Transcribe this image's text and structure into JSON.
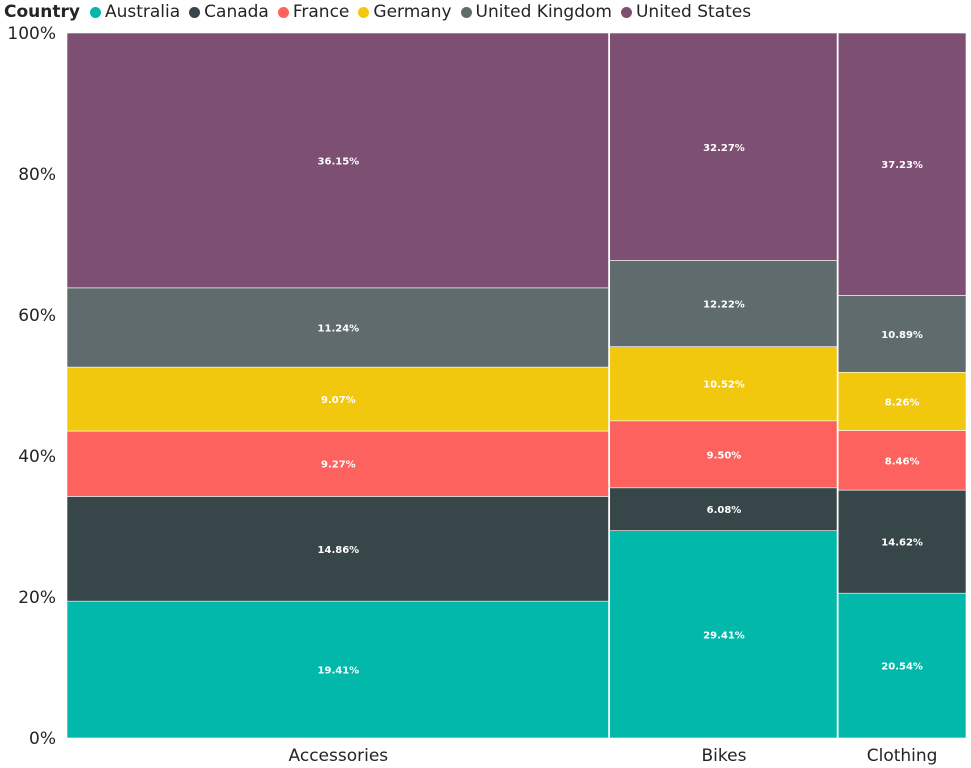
{
  "chart_data": {
    "type": "bar",
    "subtype": "100% stacked variable-width (mekko)",
    "legend_title": "Country",
    "legend_position": "top-left",
    "categories": [
      "Accessories",
      "Bikes",
      "Clothing"
    ],
    "category_widths": [
      0.6037,
      0.2542,
      0.1421
    ],
    "series": [
      {
        "name": "Australia",
        "color": "#01B8AA",
        "values": [
          19.41,
          29.41,
          20.54
        ],
        "labels": [
          "19.41%",
          "29.41%",
          "20.54%"
        ]
      },
      {
        "name": "Canada",
        "color": "#374649",
        "values": [
          14.86,
          6.08,
          14.62
        ],
        "labels": [
          "14.86%",
          "6.08%",
          "14.62%"
        ]
      },
      {
        "name": "France",
        "color": "#FD625E",
        "values": [
          9.27,
          9.5,
          8.46
        ],
        "labels": [
          "9.27%",
          "9.50%",
          "8.46%"
        ]
      },
      {
        "name": "Germany",
        "color": "#F2C80F",
        "values": [
          9.07,
          10.52,
          8.26
        ],
        "labels": [
          "9.07%",
          "10.52%",
          "8.26%"
        ]
      },
      {
        "name": "United Kingdom",
        "color": "#5F6B6D",
        "values": [
          11.24,
          12.22,
          10.89
        ],
        "labels": [
          "11.24%",
          "12.22%",
          "10.89%"
        ]
      },
      {
        "name": "United States",
        "color": "#7D4F73",
        "values": [
          36.15,
          32.27,
          37.23
        ],
        "labels": [
          "36.15%",
          "32.27%",
          "37.23%"
        ]
      }
    ],
    "y_ticks": [
      "0%",
      "20%",
      "40%",
      "60%",
      "80%",
      "100%"
    ],
    "ylim": [
      0,
      100
    ],
    "grid": false
  }
}
